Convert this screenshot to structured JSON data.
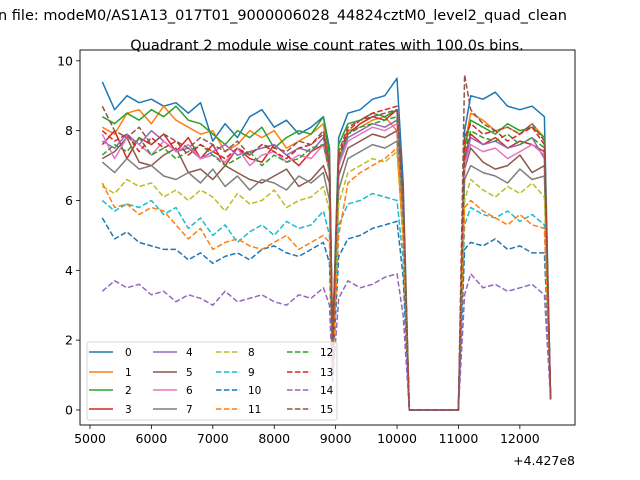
{
  "chart_data": {
    "type": "line",
    "suptitle": "n file: modeM0/AS1A13_017T01_9000006028_44824cztM0_level2_quad_clean",
    "title": "Quadrant 2 module wise count rates with 100.0s bins.",
    "xlabel": "",
    "ylabel": "",
    "x_offset_label": "+4.427e8",
    "xlim": [
      4837,
      12898
    ],
    "ylim": [
      -0.43,
      10.31
    ],
    "xticks": [
      5000,
      6000,
      7000,
      8000,
      9000,
      10000,
      11000,
      12000
    ],
    "yticks": [
      0,
      2,
      4,
      6,
      8,
      10
    ],
    "grid": false,
    "legend_placement": "lower-left",
    "legend_columns": 4,
    "x": [
      5200,
      5400,
      5600,
      5800,
      6000,
      6200,
      6400,
      6600,
      6800,
      7000,
      7200,
      7400,
      7600,
      7800,
      8000,
      8200,
      8400,
      8600,
      8800,
      8900,
      8950,
      9050,
      9200,
      9400,
      9600,
      9800,
      10000,
      10100,
      10200,
      11000,
      11100,
      11200,
      11400,
      11600,
      11800,
      12000,
      12200,
      12400,
      12500
    ],
    "series": [
      {
        "name": "0",
        "color": "#1f77b4",
        "dashed": false,
        "values": [
          9.4,
          8.6,
          9.0,
          8.8,
          8.9,
          8.7,
          8.8,
          8.5,
          8.8,
          7.7,
          8.2,
          7.8,
          8.4,
          8.6,
          8.1,
          8.3,
          7.9,
          8.1,
          8.4,
          7.5,
          2.0,
          7.8,
          8.5,
          8.6,
          8.9,
          9.0,
          9.5,
          6.5,
          0,
          0,
          8.0,
          9.0,
          8.9,
          9.1,
          8.7,
          8.6,
          8.7,
          8.4,
          0.3
        ]
      },
      {
        "name": "1",
        "color": "#ff7f0e",
        "dashed": false,
        "values": [
          8.1,
          7.9,
          8.5,
          8.6,
          8.2,
          8.7,
          8.3,
          8.1,
          7.9,
          8.0,
          7.4,
          7.6,
          8.0,
          7.8,
          8.0,
          7.5,
          7.7,
          7.9,
          8.2,
          7.0,
          1.8,
          7.2,
          8.0,
          8.1,
          8.3,
          8.4,
          8.0,
          5.9,
          0,
          0,
          7.6,
          8.5,
          8.3,
          8.0,
          8.1,
          7.9,
          8.2,
          7.8,
          0.3
        ]
      },
      {
        "name": "2",
        "color": "#2ca02c",
        "dashed": false,
        "values": [
          8.4,
          8.2,
          8.5,
          8.3,
          8.6,
          8.4,
          8.7,
          8.3,
          8.2,
          7.9,
          7.6,
          8.0,
          7.8,
          8.1,
          7.5,
          7.8,
          8.0,
          7.9,
          8.4,
          7.3,
          1.9,
          7.6,
          8.2,
          8.3,
          8.5,
          8.4,
          8.6,
          6.0,
          0,
          0,
          7.5,
          8.3,
          8.1,
          7.9,
          8.2,
          8.0,
          8.1,
          7.8,
          0.3
        ]
      },
      {
        "name": "3",
        "color": "#d62728",
        "dashed": false,
        "values": [
          7.6,
          8.0,
          7.2,
          7.8,
          7.6,
          7.9,
          7.4,
          7.8,
          7.2,
          7.6,
          7.0,
          7.5,
          7.2,
          7.1,
          7.6,
          7.3,
          7.0,
          7.4,
          7.6,
          6.8,
          1.7,
          7.0,
          7.9,
          8.2,
          8.4,
          8.3,
          8.6,
          5.7,
          0,
          0,
          7.2,
          7.9,
          7.6,
          7.8,
          7.5,
          7.7,
          7.6,
          7.4,
          0.3
        ]
      },
      {
        "name": "4",
        "color": "#9467bd",
        "dashed": false,
        "values": [
          7.7,
          7.5,
          7.9,
          7.6,
          8.0,
          7.7,
          7.4,
          7.5,
          7.2,
          7.4,
          7.6,
          7.3,
          7.4,
          7.5,
          7.6,
          7.3,
          7.5,
          7.4,
          7.8,
          6.9,
          1.6,
          7.1,
          7.8,
          8.0,
          8.2,
          8.1,
          8.3,
          5.6,
          0,
          0,
          7.1,
          7.8,
          7.6,
          7.7,
          7.5,
          7.6,
          7.8,
          7.2,
          0.3
        ]
      },
      {
        "name": "5",
        "color": "#8c564b",
        "dashed": false,
        "values": [
          7.2,
          7.4,
          7.8,
          7.1,
          7.0,
          7.3,
          7.5,
          6.8,
          6.9,
          6.6,
          7.0,
          6.8,
          6.6,
          6.5,
          6.7,
          6.9,
          6.4,
          6.6,
          7.0,
          6.5,
          1.5,
          6.7,
          7.5,
          7.7,
          7.9,
          7.8,
          8.0,
          5.4,
          0,
          0,
          6.9,
          7.5,
          7.1,
          6.9,
          7.0,
          7.3,
          6.8,
          7.0,
          0.3
        ]
      },
      {
        "name": "6",
        "color": "#e377c2",
        "dashed": false,
        "values": [
          7.9,
          7.2,
          7.8,
          7.6,
          7.3,
          7.7,
          7.4,
          7.6,
          7.2,
          7.3,
          7.1,
          7.5,
          7.0,
          7.3,
          7.4,
          7.1,
          7.3,
          7.2,
          7.6,
          6.8,
          1.6,
          7.0,
          7.7,
          7.9,
          8.1,
          8.0,
          8.2,
          5.5,
          0,
          0,
          7.0,
          7.6,
          7.4,
          7.5,
          7.2,
          7.4,
          7.6,
          7.3,
          0.3
        ]
      },
      {
        "name": "7",
        "color": "#7f7f7f",
        "dashed": false,
        "values": [
          7.1,
          6.8,
          7.2,
          6.9,
          7.0,
          6.7,
          6.6,
          6.8,
          6.5,
          6.9,
          6.4,
          6.7,
          6.3,
          6.6,
          6.5,
          6.3,
          6.7,
          6.5,
          6.8,
          6.0,
          1.4,
          6.3,
          7.2,
          7.4,
          7.6,
          7.5,
          7.7,
          5.2,
          0,
          0,
          6.6,
          7.0,
          6.8,
          6.7,
          6.5,
          6.9,
          6.6,
          6.7,
          0.3
        ]
      },
      {
        "name": "8",
        "color": "#bcbd22",
        "dashed": true,
        "values": [
          6.4,
          6.2,
          6.6,
          6.4,
          6.5,
          6.1,
          6.3,
          6.0,
          6.3,
          6.1,
          5.7,
          6.2,
          5.9,
          6.0,
          6.3,
          5.8,
          6.0,
          6.1,
          6.4,
          5.7,
          1.3,
          5.9,
          6.8,
          7.0,
          7.2,
          7.1,
          7.4,
          5.0,
          0,
          0,
          6.0,
          6.6,
          6.3,
          6.1,
          6.4,
          6.2,
          6.5,
          6.1,
          0.3
        ]
      },
      {
        "name": "9",
        "color": "#17becf",
        "dashed": true,
        "values": [
          6.0,
          5.7,
          5.9,
          5.8,
          6.0,
          5.6,
          5.8,
          5.2,
          5.5,
          5.0,
          5.3,
          4.8,
          5.1,
          5.3,
          5.0,
          5.4,
          5.2,
          5.3,
          5.7,
          5.0,
          1.2,
          5.3,
          5.9,
          6.0,
          6.2,
          6.1,
          6.0,
          4.3,
          0,
          0,
          5.3,
          5.8,
          5.6,
          5.5,
          5.7,
          5.4,
          5.6,
          5.3,
          0.3
        ]
      },
      {
        "name": "10",
        "color": "#1f77b4",
        "dashed": true,
        "values": [
          5.5,
          4.9,
          5.1,
          4.8,
          4.7,
          4.6,
          4.6,
          4.3,
          4.5,
          4.2,
          4.4,
          4.5,
          4.3,
          4.6,
          4.7,
          4.5,
          4.4,
          4.6,
          4.8,
          4.2,
          1.1,
          4.4,
          4.9,
          5.0,
          5.2,
          5.3,
          5.4,
          3.8,
          0,
          0,
          4.6,
          4.8,
          4.7,
          4.9,
          4.6,
          4.7,
          4.5,
          4.5,
          0.3
        ]
      },
      {
        "name": "11",
        "color": "#ff7f0e",
        "dashed": true,
        "values": [
          6.5,
          5.8,
          5.9,
          5.6,
          5.8,
          5.7,
          5.3,
          4.9,
          5.2,
          4.6,
          4.8,
          4.9,
          4.7,
          4.6,
          4.8,
          5.0,
          4.6,
          4.8,
          5.0,
          4.8,
          1.2,
          5.0,
          6.5,
          6.8,
          7.0,
          7.2,
          7.5,
          4.8,
          0,
          0,
          5.8,
          6.0,
          5.7,
          5.5,
          5.3,
          5.6,
          5.3,
          5.2,
          0.3
        ]
      },
      {
        "name": "12",
        "color": "#2ca02c",
        "dashed": true,
        "values": [
          7.3,
          7.6,
          7.4,
          7.8,
          7.3,
          7.5,
          7.2,
          7.4,
          7.6,
          7.3,
          7.0,
          7.2,
          7.4,
          7.0,
          7.3,
          7.1,
          7.2,
          7.5,
          7.6,
          6.9,
          1.7,
          7.2,
          7.9,
          8.1,
          8.2,
          8.3,
          8.4,
          5.8,
          0,
          0,
          7.4,
          8.0,
          7.8,
          7.7,
          7.9,
          7.6,
          7.8,
          7.5,
          0.3
        ]
      },
      {
        "name": "13",
        "color": "#d62728",
        "dashed": true,
        "values": [
          8.0,
          7.7,
          7.9,
          7.4,
          7.8,
          7.5,
          7.7,
          7.3,
          7.6,
          7.4,
          7.2,
          7.5,
          7.3,
          7.6,
          7.4,
          7.2,
          7.5,
          7.6,
          7.9,
          7.0,
          1.8,
          7.3,
          8.0,
          8.3,
          8.5,
          8.6,
          8.7,
          6.0,
          0,
          0,
          7.8,
          8.2,
          7.9,
          8.0,
          7.7,
          7.9,
          8.1,
          7.6,
          0.3
        ]
      },
      {
        "name": "14",
        "color": "#9467bd",
        "dashed": true,
        "values": [
          3.4,
          3.7,
          3.5,
          3.6,
          3.3,
          3.4,
          3.1,
          3.3,
          3.2,
          3.0,
          3.4,
          3.1,
          3.2,
          3.3,
          3.1,
          3.0,
          3.3,
          3.2,
          3.5,
          3.0,
          0.8,
          3.2,
          3.7,
          3.5,
          3.6,
          3.8,
          3.9,
          2.7,
          0,
          0,
          3.3,
          3.9,
          3.5,
          3.6,
          3.4,
          3.5,
          3.6,
          3.3,
          0.3
        ]
      },
      {
        "name": "15",
        "color": "#8c564b",
        "dashed": true,
        "values": [
          8.7,
          8.0,
          7.8,
          8.1,
          7.6,
          7.9,
          7.7,
          7.5,
          7.8,
          7.6,
          7.4,
          7.7,
          7.3,
          7.6,
          7.5,
          7.4,
          7.7,
          7.6,
          8.0,
          7.1,
          1.9,
          7.4,
          8.1,
          8.3,
          8.4,
          8.5,
          8.6,
          6.1,
          0,
          0,
          9.6,
          8.6,
          8.2,
          8.0,
          8.1,
          7.9,
          8.2,
          7.7,
          0.3
        ]
      }
    ]
  }
}
